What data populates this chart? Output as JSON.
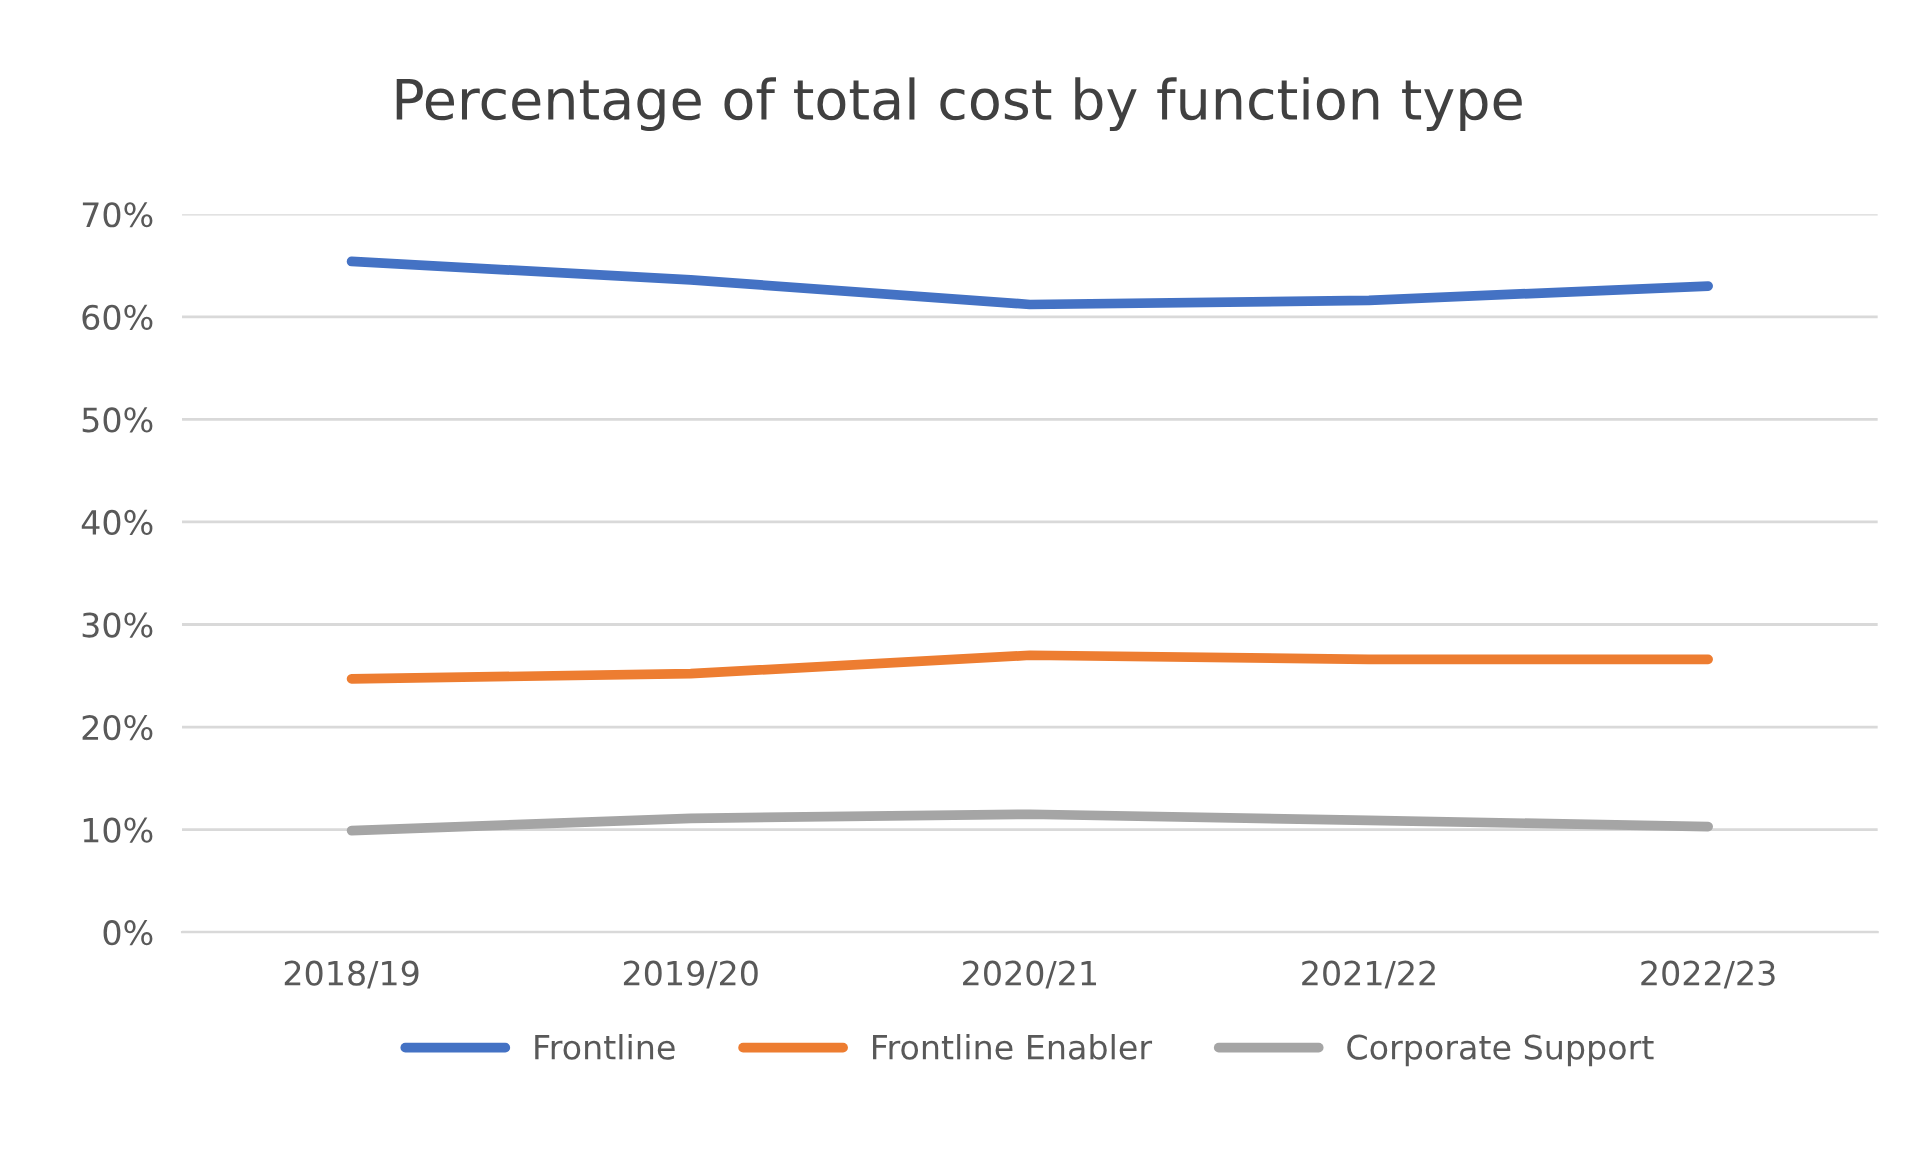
{
  "chart_data": {
    "type": "line",
    "title": "Percentage of total cost by function type",
    "categories": [
      "2018/19",
      "2019/20",
      "2020/21",
      "2021/22",
      "2022/23"
    ],
    "series": [
      {
        "name": "Frontline",
        "color": "#4472c4",
        "values": [
          65.4,
          63.6,
          61.2,
          61.6,
          63.0
        ]
      },
      {
        "name": "Frontline Enabler",
        "color": "#ed7d31",
        "values": [
          24.7,
          25.2,
          27.0,
          26.6,
          26.6
        ]
      },
      {
        "name": "Corporate Support",
        "color": "#a5a5a5",
        "values": [
          9.9,
          11.1,
          11.5,
          10.9,
          10.3
        ]
      }
    ],
    "ylim": [
      0,
      70
    ],
    "yticks": [
      {
        "value": 0,
        "label": "0%"
      },
      {
        "value": 10,
        "label": "10%"
      },
      {
        "value": 20,
        "label": "20%"
      },
      {
        "value": 30,
        "label": "30%"
      },
      {
        "value": 40,
        "label": "40%"
      },
      {
        "value": 50,
        "label": "50%"
      },
      {
        "value": 60,
        "label": "60%"
      },
      {
        "value": 70,
        "label": "70%"
      }
    ],
    "grid": "y",
    "legend": "bottom",
    "marker": "none",
    "line_style": "solid"
  }
}
